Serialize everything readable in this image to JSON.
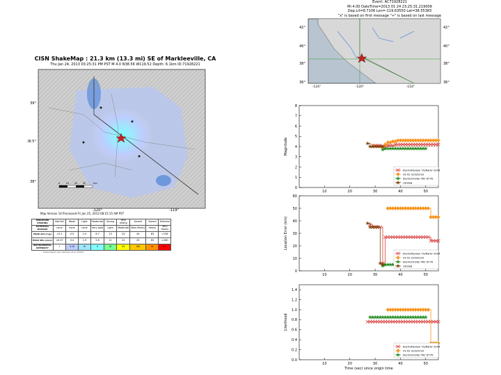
{
  "colors": {
    "ratio": "#d83a3a",
    "vs": "#f7941d",
    "elarms": "#1f8a1f",
    "catalog": "#7b3f00",
    "target_marker": "#c82020",
    "map_land": "#d8d8d8",
    "map_water": "#5a8cd8",
    "map_ocean": "#b8c4d0",
    "shake_base": "#c8d4ee"
  },
  "shakemap": {
    "title": "CISN ShakeMap : 21.3 km (13.3 mi) SE of Markleeville, CA",
    "subtitle": "Thu Jan 24, 2013 03:25:31 PM PST   M 4.0   N38.56 W119.52   Depth: 6.1km   ID:71928221",
    "lat_labels": [
      "39°",
      "38.5°",
      "38°"
    ],
    "lon_labels": [
      "-120°",
      "-119°"
    ],
    "scale_bar_labels": [
      "0",
      "10",
      "20",
      "30",
      "km"
    ],
    "version_note": "Map Version 14 Processed Fri Jan 25, 2013 08:15:15 AM PST",
    "scale_note": "Scale based upon Worden et al. (2012)",
    "table": {
      "row_labels": [
        "PERCEIVED SHAKING",
        "POTENTIAL DAMAGE",
        "PEAK ACC.(%g)",
        "PEAK VEL.(cm/s)",
        "INSTRUMENTAL INTENSITY"
      ],
      "columns": [
        {
          "shaking": "Not felt",
          "damage": "none",
          "acc": "<0.1",
          "vel": "<0.07",
          "mmi": "I",
          "color": "#ffffff"
        },
        {
          "shaking": "Weak",
          "damage": "none",
          "acc": "0.5",
          "vel": "0.4",
          "mmi": "II-III",
          "color": "#bfccff"
        },
        {
          "shaking": "Light",
          "damage": "none",
          "acc": "2.4",
          "vel": "1.9",
          "mmi": "IV",
          "color": "#a0e6ff"
        },
        {
          "shaking": "Moderate",
          "damage": "Very light",
          "acc": "6.7",
          "vel": "5.8",
          "mmi": "V",
          "color": "#80ffff"
        },
        {
          "shaking": "Strong",
          "damage": "Light",
          "acc": "13",
          "vel": "11",
          "mmi": "VI",
          "color": "#7aff93"
        },
        {
          "shaking": "Very strong",
          "damage": "Moderate",
          "acc": "24",
          "vel": "22",
          "mmi": "VII",
          "color": "#ffff00"
        },
        {
          "shaking": "Severe",
          "damage": "Mod./Heavy",
          "acc": "44",
          "vel": "43",
          "mmi": "VIII",
          "color": "#ffc800"
        },
        {
          "shaking": "Violent",
          "damage": "Heavy",
          "acc": "83",
          "vel": "83",
          "mmi": "IX",
          "color": "#ff9100"
        },
        {
          "shaking": "Extreme",
          "damage": "Very Heavy",
          "acc": ">156",
          "vel": ">160",
          "mmi": "X+",
          "color": "#ff0000"
        }
      ]
    }
  },
  "event": {
    "title_lines": [
      "Event: AC71928221",
      "Mi 4.00 DateTime=2013 01 24 23:25:31.219009",
      "Dep.Lit=8.7106 Lon=-119.63550 Lat=38.55383",
      "\"x\" is based on first message \"+\" is based on last message"
    ]
  },
  "overview_map": {
    "lat_labels": [
      "42°",
      "40°",
      "38°",
      "36°"
    ],
    "lon_labels": [
      "-124°",
      "-120°",
      "-116°"
    ]
  },
  "chart_data": [
    {
      "type": "line",
      "title": "",
      "xlabel": "",
      "ylabel": "Magnitude",
      "xlim": [
        0,
        55
      ],
      "ylim": [
        0,
        8
      ],
      "xticks": [
        10,
        20,
        30,
        40,
        50
      ],
      "yticks": [
        0,
        1,
        2,
        3,
        4,
        5,
        6,
        7,
        8
      ],
      "legend_position": "bottom-right",
      "catalog_value": 4.0,
      "series": [
        {
          "name": "ElarmsReview 'Vs/Ratio'-3294",
          "key": "ratio",
          "x": [
            29,
            30,
            31,
            32,
            33,
            34,
            35,
            36,
            37,
            38,
            39,
            40,
            41,
            42,
            43,
            44,
            45,
            46,
            47,
            48,
            49,
            50,
            51,
            52,
            53,
            54,
            55
          ],
          "y": [
            4.1,
            4.1,
            4.1,
            4.1,
            4.0,
            4.0,
            4.1,
            4.1,
            4.1,
            4.2,
            4.2,
            4.2,
            4.2,
            4.2,
            4.2,
            4.2,
            4.2,
            4.2,
            4.2,
            4.2,
            4.2,
            4.2,
            4.2,
            4.2,
            4.2,
            4.2,
            4.2
          ]
        },
        {
          "name": "VS 02-31920193",
          "key": "vs",
          "x": [
            33,
            34,
            35,
            36,
            37,
            38,
            39,
            40,
            41,
            42,
            43,
            44,
            45,
            46,
            47,
            48,
            49,
            50,
            51,
            52,
            53,
            54,
            55
          ],
          "y": [
            3.9,
            4.2,
            4.4,
            4.4,
            4.5,
            4.5,
            4.6,
            4.6,
            4.6,
            4.6,
            4.6,
            4.6,
            4.6,
            4.6,
            4.6,
            4.6,
            4.6,
            4.6,
            4.6,
            4.6,
            4.6,
            4.6,
            4.6
          ]
        },
        {
          "name": "ElarmsOnSite 'ME' 8776",
          "key": "elarms",
          "x": [
            33,
            34,
            35,
            36,
            37,
            38,
            39,
            40,
            41,
            42,
            43,
            44,
            45,
            46,
            47,
            48,
            49,
            50
          ],
          "y": [
            3.7,
            3.8,
            3.8,
            3.8,
            3.8,
            3.8,
            3.8,
            3.8,
            3.8,
            3.8,
            3.8,
            3.8,
            3.8,
            3.8,
            3.8,
            3.8,
            3.8,
            3.8
          ]
        },
        {
          "name": "catalog",
          "key": "catalog",
          "x": [
            27,
            28,
            29,
            30,
            31,
            32,
            33
          ],
          "y": [
            4.3,
            4.0,
            4.0,
            4.0,
            4.0,
            4.0,
            4.0
          ]
        }
      ]
    },
    {
      "type": "line",
      "title": "",
      "xlabel": "",
      "ylabel": "Location Error (km)",
      "xlim": [
        0,
        55
      ],
      "ylim": [
        0,
        60
      ],
      "xticks": [
        10,
        20,
        30,
        40,
        50
      ],
      "yticks": [
        0,
        10,
        20,
        30,
        40,
        50,
        60
      ],
      "legend_position": "bottom-right",
      "series": [
        {
          "name": "ElarmsReview 'Vs/Ratio'-3294",
          "key": "ratio",
          "x": [
            28,
            29,
            30,
            31,
            32,
            33,
            34,
            35,
            36,
            37,
            38,
            39,
            40,
            41,
            42,
            43,
            44,
            45,
            46,
            47,
            48,
            49,
            50,
            51,
            52,
            53,
            54,
            55
          ],
          "y": [
            37,
            35,
            35,
            35,
            35,
            6,
            27,
            27,
            27,
            27,
            27,
            27,
            27,
            27,
            27,
            27,
            27,
            27,
            27,
            27,
            27,
            27,
            27,
            27,
            24,
            24,
            24,
            24
          ]
        },
        {
          "name": "VS 02-31920193",
          "key": "vs",
          "x": [
            35,
            36,
            37,
            38,
            39,
            40,
            41,
            42,
            43,
            44,
            45,
            46,
            47,
            48,
            49,
            50,
            51,
            52,
            53,
            54,
            55
          ],
          "y": [
            50,
            50,
            50,
            50,
            50,
            50,
            50,
            50,
            50,
            50,
            50,
            50,
            50,
            50,
            50,
            50,
            50,
            43,
            43,
            43,
            43
          ]
        },
        {
          "name": "ElarmsOnSite 'ME' 8776",
          "key": "elarms",
          "x": [
            33,
            34,
            35,
            36,
            37,
            38,
            39,
            40,
            41,
            42,
            43,
            44,
            45,
            46,
            47,
            48,
            49,
            50
          ],
          "y": [
            4,
            5,
            5,
            5,
            5,
            5,
            5,
            5,
            5,
            5,
            5,
            5,
            5,
            5,
            5,
            5,
            5,
            5
          ]
        },
        {
          "name": "catalog",
          "key": "catalog",
          "x": [
            27,
            28,
            29,
            30,
            31,
            32,
            33
          ],
          "y": [
            38,
            35,
            35,
            35,
            35,
            6,
            5
          ]
        }
      ]
    },
    {
      "type": "line",
      "title": "",
      "xlabel": "Time (sec) since origin time",
      "ylabel": "Likelihood",
      "xlim": [
        0,
        55
      ],
      "ylim": [
        0,
        1.5
      ],
      "xticks": [
        10,
        20,
        30,
        40,
        50
      ],
      "yticks": [
        0.0,
        0.2,
        0.4,
        0.6,
        0.8,
        1.0,
        1.2,
        1.4
      ],
      "legend_position": "bottom-right",
      "series": [
        {
          "name": "ElarmsReview 'Vs/Ratio'-3294",
          "key": "ratio",
          "x": [
            27,
            28,
            29,
            30,
            31,
            32,
            33,
            34,
            35,
            36,
            37,
            38,
            39,
            40,
            41,
            42,
            43,
            44,
            45,
            46,
            47,
            48,
            49,
            50,
            51,
            52,
            53,
            54,
            55
          ],
          "y": [
            0.76,
            0.76,
            0.76,
            0.76,
            0.76,
            0.76,
            0.76,
            0.76,
            0.76,
            0.76,
            0.76,
            0.76,
            0.76,
            0.76,
            0.76,
            0.76,
            0.76,
            0.76,
            0.76,
            0.76,
            0.76,
            0.76,
            0.76,
            0.76,
            0.76,
            0.76,
            0.76,
            0.76,
            0.76
          ]
        },
        {
          "name": "VS 02-31920193",
          "key": "vs",
          "x": [
            35,
            36,
            37,
            38,
            39,
            40,
            41,
            42,
            43,
            44,
            45,
            46,
            47,
            48,
            49,
            50,
            51,
            52,
            53,
            54,
            55
          ],
          "y": [
            1.0,
            1.0,
            1.0,
            1.0,
            1.0,
            1.0,
            1.0,
            1.0,
            1.0,
            1.0,
            1.0,
            1.0,
            1.0,
            1.0,
            1.0,
            1.0,
            1.0,
            0.33,
            0.33,
            0.33,
            0.33
          ]
        },
        {
          "name": "ElarmsOnSite 'ME' 8776",
          "key": "elarms",
          "x": [
            28,
            29,
            30,
            31,
            32,
            33,
            34,
            35,
            36,
            37,
            38,
            39,
            40,
            41,
            42,
            43,
            44,
            45,
            46,
            47,
            48,
            49,
            50
          ],
          "y": [
            0.85,
            0.85,
            0.85,
            0.85,
            0.85,
            0.85,
            0.85,
            0.85,
            0.85,
            0.85,
            0.85,
            0.85,
            0.85,
            0.85,
            0.85,
            0.85,
            0.85,
            0.85,
            0.85,
            0.85,
            0.85,
            0.85,
            0.85
          ]
        }
      ]
    }
  ]
}
